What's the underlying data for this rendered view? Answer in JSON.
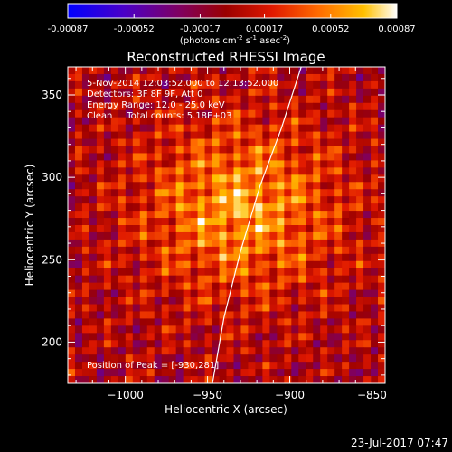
{
  "chart_data": {
    "type": "heatmap",
    "title": "Reconstructed RHESSI Image",
    "colorbar": {
      "ticks": [
        "-0.00087",
        "-0.00052",
        "-0.00017",
        "0.00017",
        "0.00052",
        "0.00087"
      ],
      "unit_parts": [
        "(photons cm",
        "-2",
        " s",
        "-1",
        " asec",
        "-2",
        ")"
      ],
      "range": [
        -0.00087,
        0.00087
      ],
      "colormap": [
        "#0000ff",
        "#4a00c8",
        "#9b0000",
        "#e01800",
        "#ff6a00",
        "#ffc000",
        "#ffffff"
      ]
    },
    "annotations": [
      "5-Nov-2014 12:03:52.000 to 12:13:52.000",
      "Detectors: 3F 8F 9F, Att 0",
      "Energy Range: 12.0 - 25.0 keV",
      "Clean     Total counts: 5.18E+03",
      "Position of Peak = [-930,281]"
    ],
    "xlabel": "Heliocentric X (arcsec)",
    "ylabel": "Heliocentric Y (arcsec)",
    "xlim": [
      -1035,
      -842
    ],
    "ylim": [
      175,
      367
    ],
    "xticks": [
      -1000,
      -950,
      -900,
      -850
    ],
    "yticks": [
      200,
      250,
      300,
      350
    ],
    "peak": [
      -930,
      281
    ],
    "limb_points": [
      [
        -947,
        175
      ],
      [
        -940,
        215
      ],
      [
        -930,
        255
      ],
      [
        -918,
        295
      ],
      [
        -905,
        330
      ],
      [
        -893,
        367
      ]
    ],
    "colors": {
      "limb": "#ffffff",
      "axes": "#ffffff",
      "background": "#000000"
    }
  },
  "timestamp": "23-Jul-2017 07:47"
}
